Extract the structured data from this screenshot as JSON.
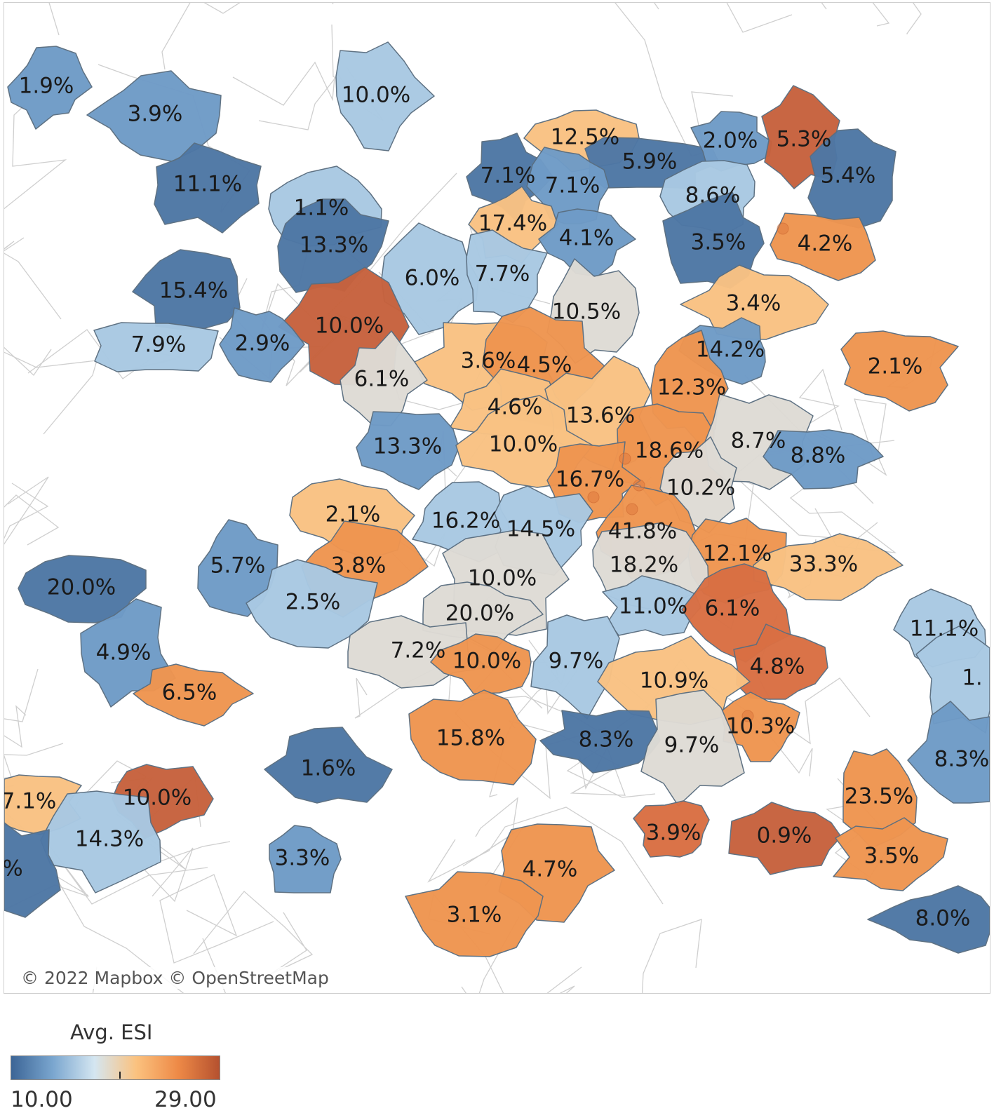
{
  "colors": {
    "dark_blue": "#4e77a5",
    "mid_blue": "#6f9bc7",
    "light_blue": "#a9c9e3",
    "neutral": "#dedbd5",
    "light_orange": "#f9c283",
    "orange": "#ef9550",
    "dark_orange": "#d96f43",
    "rust": "#c7623d"
  },
  "map": {
    "attribution": "© 2022 Mapbox © OpenStreetMap",
    "regions": [
      {
        "label": "1.9%",
        "color": "mid_blue"
      },
      {
        "label": "3.9%",
        "color": "mid_blue"
      },
      {
        "label": "10.0%",
        "color": "light_blue"
      },
      {
        "label": "11.1%",
        "color": "dark_blue"
      },
      {
        "label": "12.5%",
        "color": "light_orange"
      },
      {
        "label": "5.9%",
        "color": "dark_blue"
      },
      {
        "label": "2.0%",
        "color": "mid_blue"
      },
      {
        "label": "5.3%",
        "color": "rust"
      },
      {
        "label": "5.4%",
        "color": "dark_blue"
      },
      {
        "label": "7.1%",
        "color": "dark_blue"
      },
      {
        "label": "7.1%",
        "color": "mid_blue"
      },
      {
        "label": "8.6%",
        "color": "light_blue"
      },
      {
        "label": "1.1%",
        "color": "light_blue"
      },
      {
        "label": "13.3%",
        "color": "dark_blue"
      },
      {
        "label": "17.4%",
        "color": "light_orange"
      },
      {
        "label": "4.1%",
        "color": "mid_blue"
      },
      {
        "label": "3.5%",
        "color": "dark_blue"
      },
      {
        "label": "4.2%",
        "color": "orange"
      },
      {
        "label": "15.4%",
        "color": "dark_blue"
      },
      {
        "label": "6.0%",
        "color": "light_blue"
      },
      {
        "label": "7.7%",
        "color": "light_blue"
      },
      {
        "label": "10.5%",
        "color": "neutral"
      },
      {
        "label": "3.4%",
        "color": "light_orange"
      },
      {
        "label": "10.0%",
        "color": "rust"
      },
      {
        "label": "7.9%",
        "color": "light_blue"
      },
      {
        "label": "2.9%",
        "color": "mid_blue"
      },
      {
        "label": "3.6%",
        "color": "light_orange"
      },
      {
        "label": "4.5%",
        "color": "orange"
      },
      {
        "label": "14.2%",
        "color": "mid_blue"
      },
      {
        "label": "2.1%",
        "color": "orange"
      },
      {
        "label": "6.1%",
        "color": "neutral"
      },
      {
        "label": "12.3%",
        "color": "orange"
      },
      {
        "label": "4.6%",
        "color": "light_orange"
      },
      {
        "label": "13.6%",
        "color": "light_orange"
      },
      {
        "label": "13.3%",
        "color": "mid_blue"
      },
      {
        "label": "10.0%",
        "color": "light_orange"
      },
      {
        "label": "18.6%",
        "color": "orange"
      },
      {
        "label": "8.7%",
        "color": "neutral"
      },
      {
        "label": "8.8%",
        "color": "mid_blue"
      },
      {
        "label": "16.7%",
        "color": "orange"
      },
      {
        "label": "10.2%",
        "color": "neutral"
      },
      {
        "label": "2.1%",
        "color": "light_orange"
      },
      {
        "label": "16.2%",
        "color": "light_blue"
      },
      {
        "label": "14.5%",
        "color": "light_blue"
      },
      {
        "label": "41.8%",
        "color": "orange"
      },
      {
        "label": "12.1%",
        "color": "orange"
      },
      {
        "label": "33.3%",
        "color": "light_orange"
      },
      {
        "label": "5.7%",
        "color": "mid_blue"
      },
      {
        "label": "3.8%",
        "color": "orange"
      },
      {
        "label": "18.2%",
        "color": "neutral"
      },
      {
        "label": "20.0%",
        "color": "dark_blue"
      },
      {
        "label": "10.0%",
        "color": "neutral"
      },
      {
        "label": "2.5%",
        "color": "light_blue"
      },
      {
        "label": "20.0%",
        "color": "neutral"
      },
      {
        "label": "11.0%",
        "color": "light_blue"
      },
      {
        "label": "6.1%",
        "color": "dark_orange"
      },
      {
        "label": "11.1%",
        "color": "light_blue"
      },
      {
        "label": "4.9%",
        "color": "mid_blue"
      },
      {
        "label": "7.2%",
        "color": "neutral"
      },
      {
        "label": "10.0%",
        "color": "orange"
      },
      {
        "label": "9.7%",
        "color": "light_blue"
      },
      {
        "label": "4.8%",
        "color": "dark_orange"
      },
      {
        "label": "10.9%",
        "color": "light_orange"
      },
      {
        "label": "1.",
        "color": "light_blue"
      },
      {
        "label": "6.5%",
        "color": "orange"
      },
      {
        "label": "10.3%",
        "color": "orange"
      },
      {
        "label": "15.8%",
        "color": "orange"
      },
      {
        "label": "8.3%",
        "color": "dark_blue"
      },
      {
        "label": "9.7%",
        "color": "neutral"
      },
      {
        "label": "8.3%",
        "color": "mid_blue"
      },
      {
        "label": "1.6%",
        "color": "dark_blue"
      },
      {
        "label": "7.1%",
        "color": "light_orange"
      },
      {
        "label": "10.0%",
        "color": "rust"
      },
      {
        "label": "23.5%",
        "color": "orange"
      },
      {
        "label": "14.3%",
        "color": "light_blue"
      },
      {
        "label": "3.9%",
        "color": "dark_orange"
      },
      {
        "label": "0.9%",
        "color": "rust"
      },
      {
        "label": "3.3%",
        "color": "mid_blue"
      },
      {
        "label": "3.5%",
        "color": "orange"
      },
      {
        "label": "4.7%",
        "color": "orange"
      },
      {
        "label": "3.1%",
        "color": "orange"
      },
      {
        "label": "8.0%",
        "color": "dark_blue"
      },
      {
        "label": "%",
        "color": "dark_blue"
      }
    ]
  },
  "legend": {
    "title": "Avg. ESI",
    "min_label": "10.00",
    "max_label": "29.00",
    "range": [
      10.0,
      29.0
    ],
    "gradient": [
      "#3c6596",
      "#7aa6cf",
      "#d4e6f1",
      "#fbc27f",
      "#ee8a47",
      "#b5512f"
    ]
  }
}
